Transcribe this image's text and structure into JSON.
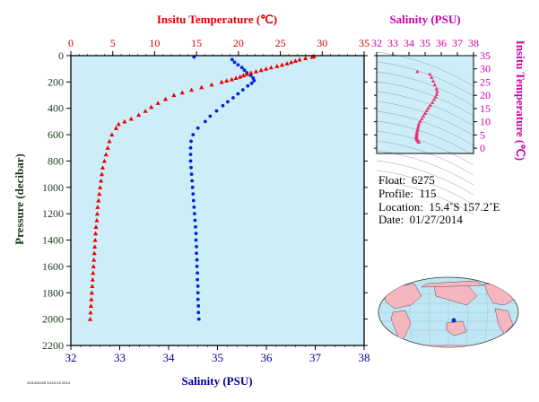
{
  "chart_data": [
    {
      "type": "scatter",
      "title": "",
      "top_axis": {
        "label": "Insitu Temperature (℃)",
        "range": [
          0,
          35
        ],
        "ticks": [
          "0",
          "5",
          "10",
          "15",
          "20",
          "25",
          "30",
          "35"
        ],
        "color": "#dd0000"
      },
      "bottom_axis": {
        "label": "Salinity (PSU)",
        "range": [
          32,
          38
        ],
        "ticks": [
          "32",
          "33",
          "34",
          "35",
          "36",
          "37",
          "38"
        ],
        "color": "#000099"
      },
      "left_axis": {
        "label": "Pressure (decibar)",
        "range": [
          0,
          2200
        ],
        "inverted": true,
        "ticks": [
          "0",
          "200",
          "400",
          "600",
          "800",
          "1000",
          "1200",
          "1400",
          "1600",
          "1800",
          "2000",
          "2200"
        ],
        "color": "#1a3a1a"
      },
      "background": "#cdeef8",
      "series": [
        {
          "axis": "temperature",
          "color": "#ee0000",
          "marker": "triangle",
          "pressure": [
            5,
            10,
            20,
            30,
            40,
            50,
            60,
            70,
            80,
            90,
            100,
            110,
            120,
            130,
            140,
            150,
            160,
            170,
            180,
            190,
            200,
            220,
            240,
            260,
            280,
            300,
            330,
            360,
            390,
            420,
            450,
            480,
            500,
            520,
            550,
            600,
            650,
            700,
            750,
            800,
            850,
            900,
            950,
            1000,
            1050,
            1100,
            1150,
            1200,
            1250,
            1300,
            1350,
            1400,
            1450,
            1500,
            1550,
            1600,
            1650,
            1700,
            1750,
            1800,
            1850,
            1900,
            1950,
            2000
          ],
          "temperature": [
            29.0,
            28.8,
            28.0,
            27.3,
            26.8,
            26.3,
            25.8,
            25.2,
            24.6,
            23.9,
            23.3,
            22.7,
            22.1,
            21.5,
            21.0,
            20.6,
            20.2,
            19.7,
            19.2,
            18.6,
            18.0,
            16.8,
            15.6,
            14.4,
            13.3,
            12.3,
            11.3,
            10.4,
            9.6,
            8.9,
            8.1,
            7.2,
            6.4,
            5.7,
            5.4,
            4.9,
            4.6,
            4.4,
            4.2,
            4.0,
            3.8,
            3.7,
            3.6,
            3.5,
            3.4,
            3.3,
            3.2,
            3.15,
            3.1,
            3.0,
            2.95,
            2.9,
            2.85,
            2.8,
            2.75,
            2.7,
            2.65,
            2.6,
            2.55,
            2.5,
            2.45,
            2.4,
            2.35,
            2.3
          ]
        },
        {
          "axis": "salinity",
          "color": "#0022dd",
          "marker": "circle",
          "pressure": [
            10,
            30,
            50,
            70,
            90,
            110,
            130,
            150,
            170,
            190,
            210,
            230,
            260,
            290,
            320,
            350,
            380,
            420,
            460,
            500,
            550,
            600,
            650,
            700,
            750,
            800,
            850,
            900,
            950,
            1000,
            1050,
            1100,
            1150,
            1200,
            1250,
            1300,
            1350,
            1400,
            1450,
            1500,
            1550,
            1600,
            1650,
            1700,
            1750,
            1800,
            1850,
            1900,
            1950,
            2000
          ],
          "salinity": [
            34.52,
            35.3,
            35.35,
            35.42,
            35.5,
            35.55,
            35.6,
            35.68,
            35.73,
            35.75,
            35.7,
            35.62,
            35.52,
            35.42,
            35.32,
            35.21,
            35.11,
            34.98,
            34.85,
            34.75,
            34.6,
            34.5,
            34.46,
            34.45,
            34.45,
            34.45,
            34.46,
            34.47,
            34.48,
            34.49,
            34.5,
            34.51,
            34.52,
            34.53,
            34.54,
            34.55,
            34.56,
            34.56,
            34.57,
            34.57,
            34.58,
            34.58,
            34.59,
            34.59,
            34.6,
            34.6,
            34.6,
            34.61,
            34.61,
            34.62
          ]
        }
      ]
    },
    {
      "type": "scatter",
      "title": "",
      "top_axis": {
        "label": "Salinity (PSU)",
        "range": [
          32,
          38
        ],
        "ticks": [
          "32",
          "33",
          "34",
          "35",
          "36",
          "37",
          "38"
        ],
        "color": "#cc00aa"
      },
      "right_axis": {
        "label": "Insitu Temperature (℃)",
        "range": [
          -2,
          35
        ],
        "ticks": [
          "0",
          "5",
          "10",
          "15",
          "20",
          "25",
          "30",
          "35"
        ],
        "color": "#cc00aa"
      },
      "background": "#cdeef8",
      "series": [
        {
          "color": "#ee3377",
          "marker": "triangle",
          "salinity": [
            34.52,
            35.3,
            35.4,
            35.5,
            35.6,
            35.7,
            35.75,
            35.72,
            35.65,
            35.55,
            35.45,
            35.32,
            35.2,
            35.1,
            35.0,
            34.9,
            34.8,
            34.7,
            34.62,
            34.58,
            34.55,
            34.52,
            34.5,
            34.49,
            34.48,
            34.47,
            34.46,
            34.46,
            34.47,
            34.48,
            34.5,
            34.52,
            34.55,
            34.58,
            34.6,
            34.62
          ],
          "temperature": [
            29.0,
            28.0,
            26.8,
            25.4,
            24.0,
            22.5,
            21.5,
            20.4,
            19.4,
            18.4,
            17.3,
            16.2,
            15.2,
            14.2,
            13.2,
            12.2,
            11.2,
            10.2,
            9.3,
            8.4,
            7.6,
            6.8,
            6.1,
            5.6,
            5.2,
            4.8,
            4.5,
            4.2,
            4.0,
            3.7,
            3.4,
            3.1,
            2.9,
            2.7,
            2.5,
            2.3
          ]
        }
      ]
    }
  ],
  "float_info": {
    "float_key": "Float:",
    "float_value": "6275",
    "profile_key": "Profile:",
    "profile_value": "115",
    "location_key": "Location:",
    "location_value": "15.4˚S  157.2˚E",
    "date_key": "Date:",
    "date_value": "01/27/2014"
  },
  "stamp_text": "/2014/02/26 14:12:22 2014"
}
